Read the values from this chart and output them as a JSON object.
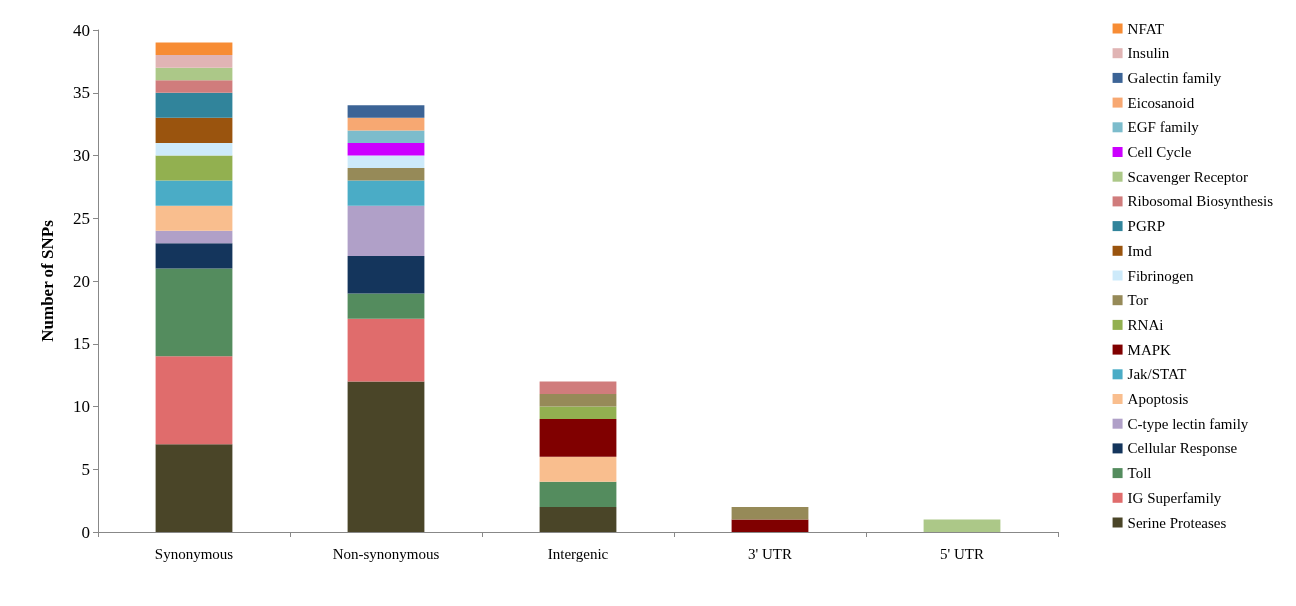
{
  "chart_data": {
    "type": "bar",
    "ylabel": "Number of SNPs",
    "stacked": true,
    "grid": false,
    "legend": "right",
    "categories": [
      "Synonymous",
      "Non-synonymous",
      "Intergenic",
      "3' UTR",
      "5' UTR"
    ],
    "ylim": [
      0,
      40
    ],
    "yticks": [
      0,
      5,
      10,
      15,
      20,
      25,
      30,
      35,
      40
    ],
    "series": [
      {
        "name": "Serine Proteases",
        "color": "#4a4528",
        "values": [
          7,
          12,
          2,
          0,
          0
        ]
      },
      {
        "name": "IG Superfamily",
        "color": "#e06c6c",
        "values": [
          7,
          5,
          0,
          0,
          0
        ]
      },
      {
        "name": "Toll",
        "color": "#548c5e",
        "values": [
          7,
          2,
          2,
          0,
          0
        ]
      },
      {
        "name": "Cellular Response",
        "color": "#14355c",
        "values": [
          2,
          3,
          0,
          0,
          0
        ]
      },
      {
        "name": "C-type lectin family",
        "color": "#b0a0c8",
        "values": [
          1,
          4,
          0,
          0,
          0
        ]
      },
      {
        "name": "Apoptosis",
        "color": "#f9be8e",
        "values": [
          2,
          0,
          2,
          0,
          0
        ]
      },
      {
        "name": "Jak/STAT",
        "color": "#4aacc6",
        "values": [
          2,
          2,
          0,
          0,
          0
        ]
      },
      {
        "name": "MAPK",
        "color": "#800000",
        "values": [
          0,
          0,
          3,
          1,
          0
        ]
      },
      {
        "name": "RNAi",
        "color": "#92b050",
        "values": [
          2,
          0,
          1,
          0,
          0
        ]
      },
      {
        "name": "Tor",
        "color": "#968a58",
        "values": [
          0,
          1,
          1,
          1,
          0
        ]
      },
      {
        "name": "Fibrinogen",
        "color": "#cdeafa",
        "values": [
          1,
          1,
          0,
          0,
          0
        ]
      },
      {
        "name": "Imd",
        "color": "#9a540e",
        "values": [
          2,
          0,
          0,
          0,
          0
        ]
      },
      {
        "name": "PGRP",
        "color": "#31849b",
        "values": [
          2,
          0,
          0,
          0,
          0
        ]
      },
      {
        "name": "Ribosomal Biosynthesis",
        "color": "#d07c7c",
        "values": [
          1,
          0,
          1,
          0,
          0
        ]
      },
      {
        "name": "Scavenger Receptor",
        "color": "#acc888",
        "values": [
          1,
          0,
          0,
          0,
          1
        ]
      },
      {
        "name": "Cell Cycle",
        "color": "#cc00ff",
        "values": [
          0,
          1,
          0,
          0,
          0
        ]
      },
      {
        "name": "EGF family",
        "color": "#7cbccc",
        "values": [
          0,
          1,
          0,
          0,
          0
        ]
      },
      {
        "name": "Eicosanoid",
        "color": "#f7a872",
        "values": [
          0,
          1,
          0,
          0,
          0
        ]
      },
      {
        "name": "Galectin family",
        "color": "#3c6496",
        "values": [
          0,
          1,
          0,
          0,
          0
        ]
      },
      {
        "name": "Insulin",
        "color": "#e0b4b4",
        "values": [
          1,
          0,
          0,
          0,
          0
        ]
      },
      {
        "name": "NFAT",
        "color": "#f78c34",
        "values": [
          1,
          0,
          0,
          0,
          0
        ]
      }
    ]
  }
}
